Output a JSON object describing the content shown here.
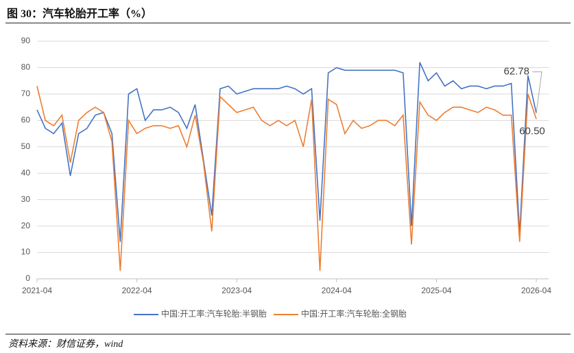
{
  "chart_data": {
    "type": "line",
    "title": "图 30：汽车轮胎开工率（%）",
    "source": "资料来源：财信证券，wind",
    "categories": [
      "2021-04",
      null,
      null,
      null,
      null,
      null,
      null,
      null,
      null,
      null,
      null,
      null,
      "2022-04",
      null,
      null,
      null,
      null,
      null,
      null,
      null,
      null,
      null,
      null,
      null,
      "2023-04",
      null,
      null,
      null,
      null,
      null,
      null,
      null,
      null,
      null,
      null,
      null,
      "2024-04",
      null,
      null,
      null,
      null,
      null,
      null,
      null,
      null,
      null,
      null,
      null,
      "2025-04",
      null,
      null,
      null,
      null,
      null,
      null,
      null,
      null,
      null,
      null,
      null,
      "2026-04"
    ],
    "series": [
      {
        "name": "中国:开工率:汽车轮胎:半钢胎",
        "color": "#4472c4",
        "end_label": "62.78",
        "values": [
          64,
          57,
          55,
          59,
          39,
          55,
          57,
          62,
          63,
          55,
          14,
          70,
          72,
          60,
          64,
          64,
          65,
          63,
          57,
          66,
          45,
          24,
          72,
          73,
          70,
          71,
          72,
          72,
          72,
          72,
          73,
          72,
          70,
          72,
          22,
          78,
          80,
          79,
          79,
          79,
          79,
          79,
          79,
          79,
          78,
          20,
          82,
          75,
          78,
          73,
          75,
          72,
          73,
          73,
          72,
          73,
          73,
          74,
          17,
          77,
          62.78
        ]
      },
      {
        "name": "中国:开工率:汽车轮胎:全钢胎",
        "color": "#ed7d31",
        "end_label": "60.50",
        "values": [
          73,
          60,
          58,
          62,
          44,
          60,
          63,
          65,
          63,
          52,
          3,
          60,
          55,
          57,
          58,
          58,
          57,
          58,
          50,
          62,
          44,
          18,
          69,
          66,
          63,
          64,
          65,
          60,
          58,
          60,
          58,
          60,
          50,
          68,
          3,
          68,
          66,
          55,
          60,
          57,
          58,
          60,
          60,
          58,
          62,
          13,
          67,
          62,
          60,
          63,
          65,
          65,
          64,
          63,
          65,
          64,
          62,
          62,
          14,
          70,
          60.5
        ]
      }
    ],
    "ylim": [
      0,
      90
    ],
    "yticks": [
      0,
      10,
      20,
      30,
      40,
      50,
      60,
      70,
      80,
      90
    ],
    "grid": true,
    "legend": "bottom"
  }
}
